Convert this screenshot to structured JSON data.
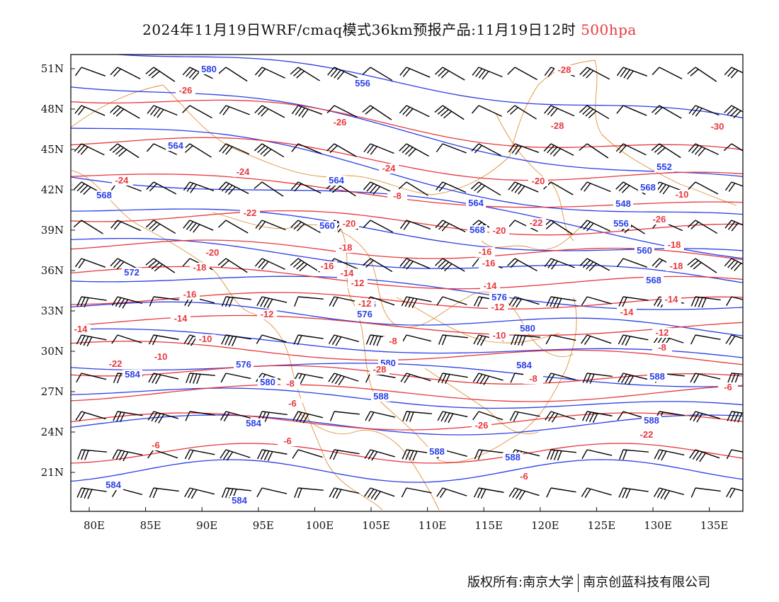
{
  "title": {
    "prefix": "2024年11月19日WRF/cmaq模式36km预报产品:11月19日12时",
    "level": "500hpa"
  },
  "colors": {
    "height": "#2a3fe8",
    "temperature": "#e8383d",
    "boundary": "#e0913a",
    "barb": "#000000"
  },
  "axes": {
    "lon_ticks": [
      "80E",
      "85E",
      "90E",
      "95E",
      "100E",
      "105E",
      "110E",
      "115E",
      "120E",
      "125E",
      "130E",
      "135E"
    ],
    "lat_ticks": [
      "51N",
      "48N",
      "45N",
      "42N",
      "39N",
      "36N",
      "33N",
      "30N",
      "27N",
      "24N",
      "21N"
    ]
  },
  "height_labels": [
    "580",
    "556",
    "564",
    "568",
    "564",
    "572",
    "568",
    "560",
    "568",
    "576",
    "576",
    "580",
    "552",
    "548",
    "556",
    "560",
    "564",
    "568",
    "576",
    "580",
    "584",
    "584",
    "588",
    "588",
    "588",
    "588",
    "584",
    "584",
    "588",
    "576",
    "580",
    "584"
  ],
  "temp_labels": [
    "-26",
    "-28",
    "-30",
    "-28",
    "-26",
    "-24",
    "-24",
    "-24",
    "-22",
    "-22",
    "-20",
    "-20",
    "-20",
    "-18",
    "-18",
    "-16",
    "-16",
    "-16",
    "-14",
    "-14",
    "-14",
    "-12",
    "-12",
    "-12",
    "-12",
    "-10",
    "-10",
    "-10",
    "-8",
    "-8",
    "-8",
    "-8",
    "-6",
    "-6",
    "-6",
    "-6",
    "-6",
    "-28",
    "-26",
    "-22",
    "-22",
    "-20",
    "-18",
    "-18",
    "-16",
    "-14",
    "-14",
    "-12",
    "-10",
    "-8",
    "-26",
    "-24",
    "-14"
  ],
  "footer": {
    "owner": "版权所有:南京大学",
    "company": "南京创蓝科技有限公司"
  }
}
